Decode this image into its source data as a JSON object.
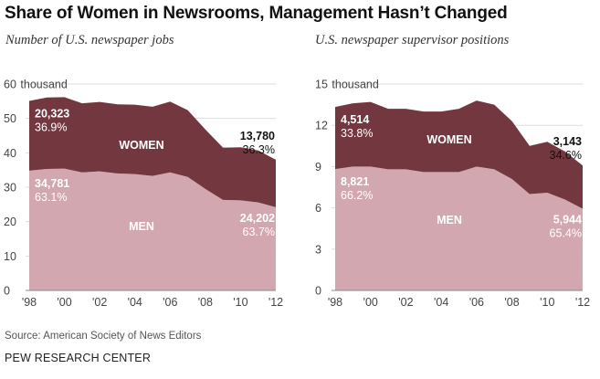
{
  "title": "Share of Women in Newsrooms, Management Hasn’t Changed",
  "source": "Source: American Society of News Editors",
  "brand": "PEW RESEARCH CENTER",
  "colors": {
    "women": "#73383f",
    "men": "#d2a7b0",
    "white_text": "#ffffff",
    "dark_text": "#111111"
  },
  "chart_data": [
    {
      "type": "area",
      "subtitle": "Number of U.S. newspaper jobs",
      "ylim": [
        0,
        60
      ],
      "yticks": [
        0,
        10,
        20,
        30,
        40,
        50,
        60
      ],
      "ytick_labels": [
        "0",
        "10",
        "20",
        "30",
        "40",
        "50",
        "60"
      ],
      "ytop_unit": "thousand",
      "xlim": [
        1998,
        2012
      ],
      "xticks": [
        1998,
        2000,
        2002,
        2004,
        2006,
        2008,
        2010,
        2012
      ],
      "xtick_labels": [
        "'98",
        "'00",
        "'02",
        "'04",
        "'06",
        "'08",
        "'10",
        "'12"
      ],
      "x": [
        1998,
        1999,
        2000,
        2001,
        2002,
        2003,
        2004,
        2005,
        2006,
        2007,
        2008,
        2009,
        2010,
        2011,
        2012
      ],
      "series": [
        {
          "name": "MEN",
          "values": [
            34.8,
            35.3,
            35.4,
            34.3,
            34.6,
            34.0,
            33.8,
            33.3,
            34.3,
            33.0,
            29.5,
            26.3,
            26.2,
            25.6,
            24.2
          ]
        },
        {
          "name": "WOMEN",
          "values": [
            20.3,
            20.8,
            20.8,
            20.1,
            20.2,
            20.1,
            20.2,
            20.1,
            20.6,
            19.4,
            17.3,
            15.2,
            15.4,
            15.1,
            13.8
          ]
        }
      ],
      "annotations": {
        "women_start": {
          "value": "20,323",
          "pct": "36.9%"
        },
        "men_start": {
          "value": "34,781",
          "pct": "63.1%"
        },
        "women_end": {
          "value": "13,780",
          "pct": "36.3%"
        },
        "men_end": {
          "value": "24,202",
          "pct": "63.7%"
        }
      }
    },
    {
      "type": "area",
      "subtitle": "U.S. newspaper supervisor positions",
      "ylim": [
        0,
        15
      ],
      "yticks": [
        0,
        3,
        6,
        9,
        12,
        15
      ],
      "ytick_labels": [
        "0",
        "3",
        "6",
        "9",
        "12",
        "15"
      ],
      "ytop_unit": "thousand",
      "xlim": [
        1998,
        2012
      ],
      "xticks": [
        1998,
        2000,
        2002,
        2004,
        2006,
        2008,
        2010,
        2012
      ],
      "xtick_labels": [
        "'98",
        "'00",
        "'02",
        "'04",
        "'06",
        "'08",
        "'10",
        "'12"
      ],
      "x": [
        1998,
        1999,
        2000,
        2001,
        2002,
        2003,
        2004,
        2005,
        2006,
        2007,
        2008,
        2009,
        2010,
        2011,
        2012
      ],
      "series": [
        {
          "name": "MEN",
          "values": [
            8.82,
            9.0,
            9.0,
            8.8,
            8.8,
            8.6,
            8.6,
            8.6,
            9.0,
            8.8,
            8.1,
            7.0,
            7.1,
            6.6,
            5.94
          ]
        },
        {
          "name": "WOMEN",
          "values": [
            4.51,
            4.6,
            4.7,
            4.4,
            4.4,
            4.4,
            4.4,
            4.6,
            4.8,
            4.7,
            4.2,
            3.5,
            3.7,
            3.5,
            3.14
          ]
        }
      ],
      "annotations": {
        "women_start": {
          "value": "4,514",
          "pct": "33.8%"
        },
        "men_start": {
          "value": "8,821",
          "pct": "66.2%"
        },
        "women_end": {
          "value": "3,143",
          "pct": "34.6%"
        },
        "men_end": {
          "value": "5,944",
          "pct": "65.4%"
        }
      }
    }
  ]
}
